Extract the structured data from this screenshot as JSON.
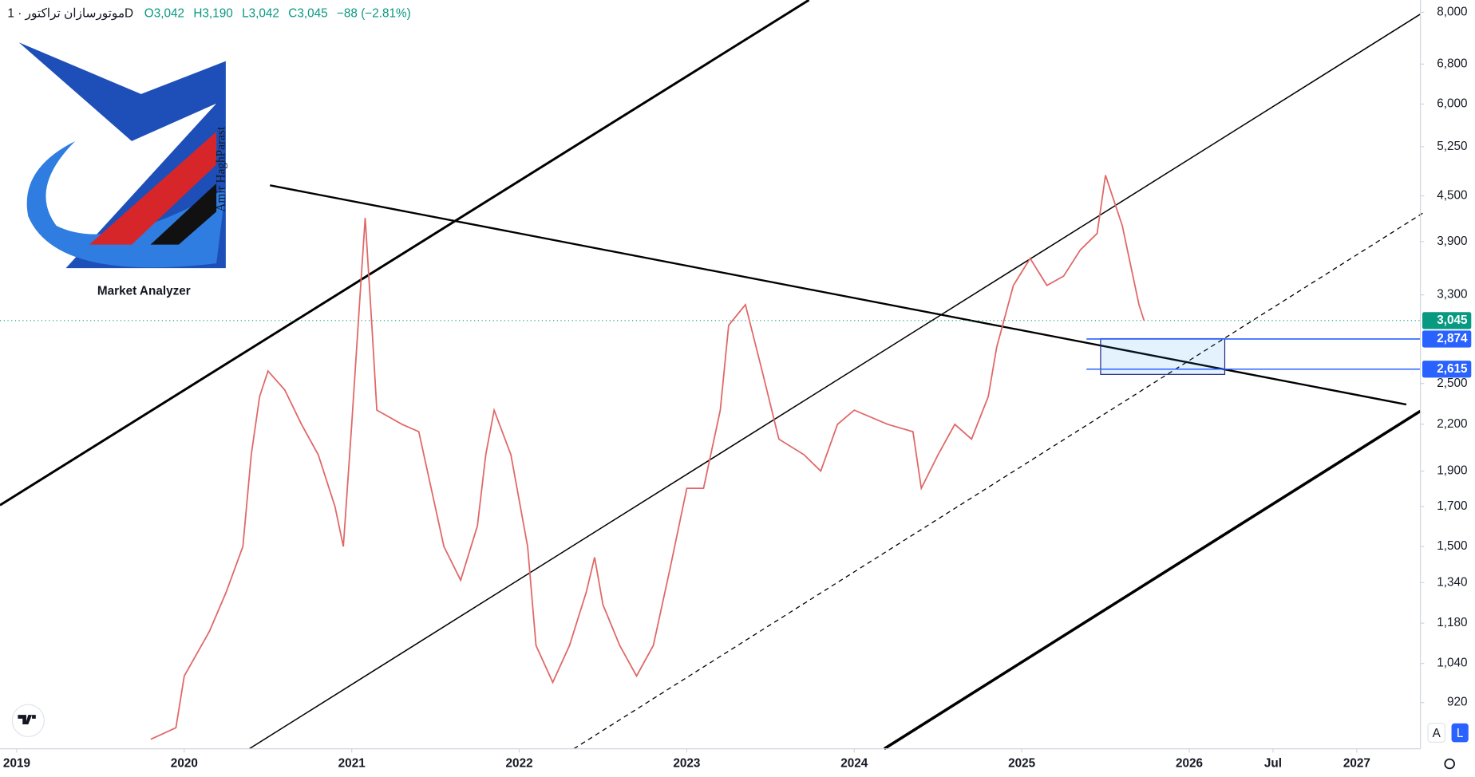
{
  "header": {
    "title": "موتورسازان تراکتور · 1D",
    "ohlc": [
      {
        "key": "O",
        "value": "3,042"
      },
      {
        "key": "H",
        "value": "3,190"
      },
      {
        "key": "L",
        "value": "3,042"
      },
      {
        "key": "C",
        "value": "3,045"
      }
    ],
    "change": "−88 (−2.81%)"
  },
  "logo": {
    "name": "Market Analyzer",
    "author": "Amir HaghParast"
  },
  "ui": {
    "buttons": [
      "A",
      "L"
    ]
  },
  "chart_data": {
    "type": "line",
    "log_scale": true,
    "color": "#e06767",
    "x": [
      2019.8,
      2019.95,
      2020.0,
      2020.15,
      2020.25,
      2020.35,
      2020.4,
      2020.45,
      2020.5,
      2020.6,
      2020.7,
      2020.8,
      2020.9,
      2020.95,
      2021.0,
      2021.05,
      2021.08,
      2021.12,
      2021.15,
      2021.3,
      2021.4,
      2021.55,
      2021.65,
      2021.75,
      2021.8,
      2021.85,
      2021.95,
      2022.05,
      2022.1,
      2022.2,
      2022.3,
      2022.4,
      2022.45,
      2022.5,
      2022.6,
      2022.7,
      2022.8,
      2022.9,
      2023.0,
      2023.1,
      2023.2,
      2023.25,
      2023.35,
      2023.45,
      2023.55,
      2023.7,
      2023.8,
      2023.9,
      2024.0,
      2024.2,
      2024.35,
      2024.4,
      2024.5,
      2024.6,
      2024.7,
      2024.8,
      2024.85,
      2024.95,
      2025.05,
      2025.15,
      2025.25,
      2025.35,
      2025.45,
      2025.5,
      2025.6,
      2025.7,
      2025.73
    ],
    "values": [
      820,
      850,
      1000,
      1150,
      1300,
      1500,
      2000,
      2400,
      2600,
      2450,
      2200,
      2000,
      1700,
      1500,
      2200,
      3300,
      4200,
      3000,
      2300,
      2200,
      2150,
      1500,
      1350,
      1600,
      2000,
      2300,
      2000,
      1500,
      1100,
      980,
      1100,
      1300,
      1450,
      1250,
      1100,
      1000,
      1100,
      1400,
      1800,
      1800,
      2300,
      3000,
      3200,
      2600,
      2100,
      2000,
      1900,
      2200,
      2300,
      2200,
      2150,
      1800,
      2000,
      2200,
      2100,
      2400,
      2800,
      3400,
      3700,
      3400,
      3500,
      3800,
      4000,
      4800,
      4100,
      3200,
      3045
    ],
    "xlim": [
      2018.9,
      2027.38
    ],
    "xticks": [
      2019,
      2020,
      2021,
      2022,
      2023,
      2024,
      2025,
      2026,
      {
        "value": 2026.5,
        "label": "Jul"
      },
      2027
    ],
    "ylim": [
      796,
      8313
    ],
    "yticks": [
      920,
      {
        "value": 1040,
        "label": "1,040"
      },
      {
        "value": 1180,
        "label": "1,180"
      },
      {
        "value": 1340,
        "label": "1,340"
      },
      {
        "value": 1500,
        "label": "1,500"
      },
      {
        "value": 1700,
        "label": "1,700"
      },
      {
        "value": 1900,
        "label": "1,900"
      },
      {
        "value": 2200,
        "label": "2,200"
      },
      {
        "value": 2500,
        "label": "2,500"
      },
      {
        "value": 3300,
        "label": "3,300"
      },
      {
        "value": 3900,
        "label": "3,900"
      },
      {
        "value": 4500,
        "label": "4,500"
      },
      {
        "value": 5250,
        "label": "5,250"
      },
      {
        "value": 6000,
        "label": "6,000"
      },
      {
        "value": 6800,
        "label": "6,800"
      },
      {
        "value": 8000,
        "label": "8,000"
      }
    ],
    "price_lines": {
      "values": [
        3045,
        2874,
        2615
      ],
      "value_labels": [
        "3,045",
        "2,874",
        "2,615"
      ],
      "colors": [
        "#089981",
        "#2962ff",
        "#2962ff"
      ]
    }
  }
}
